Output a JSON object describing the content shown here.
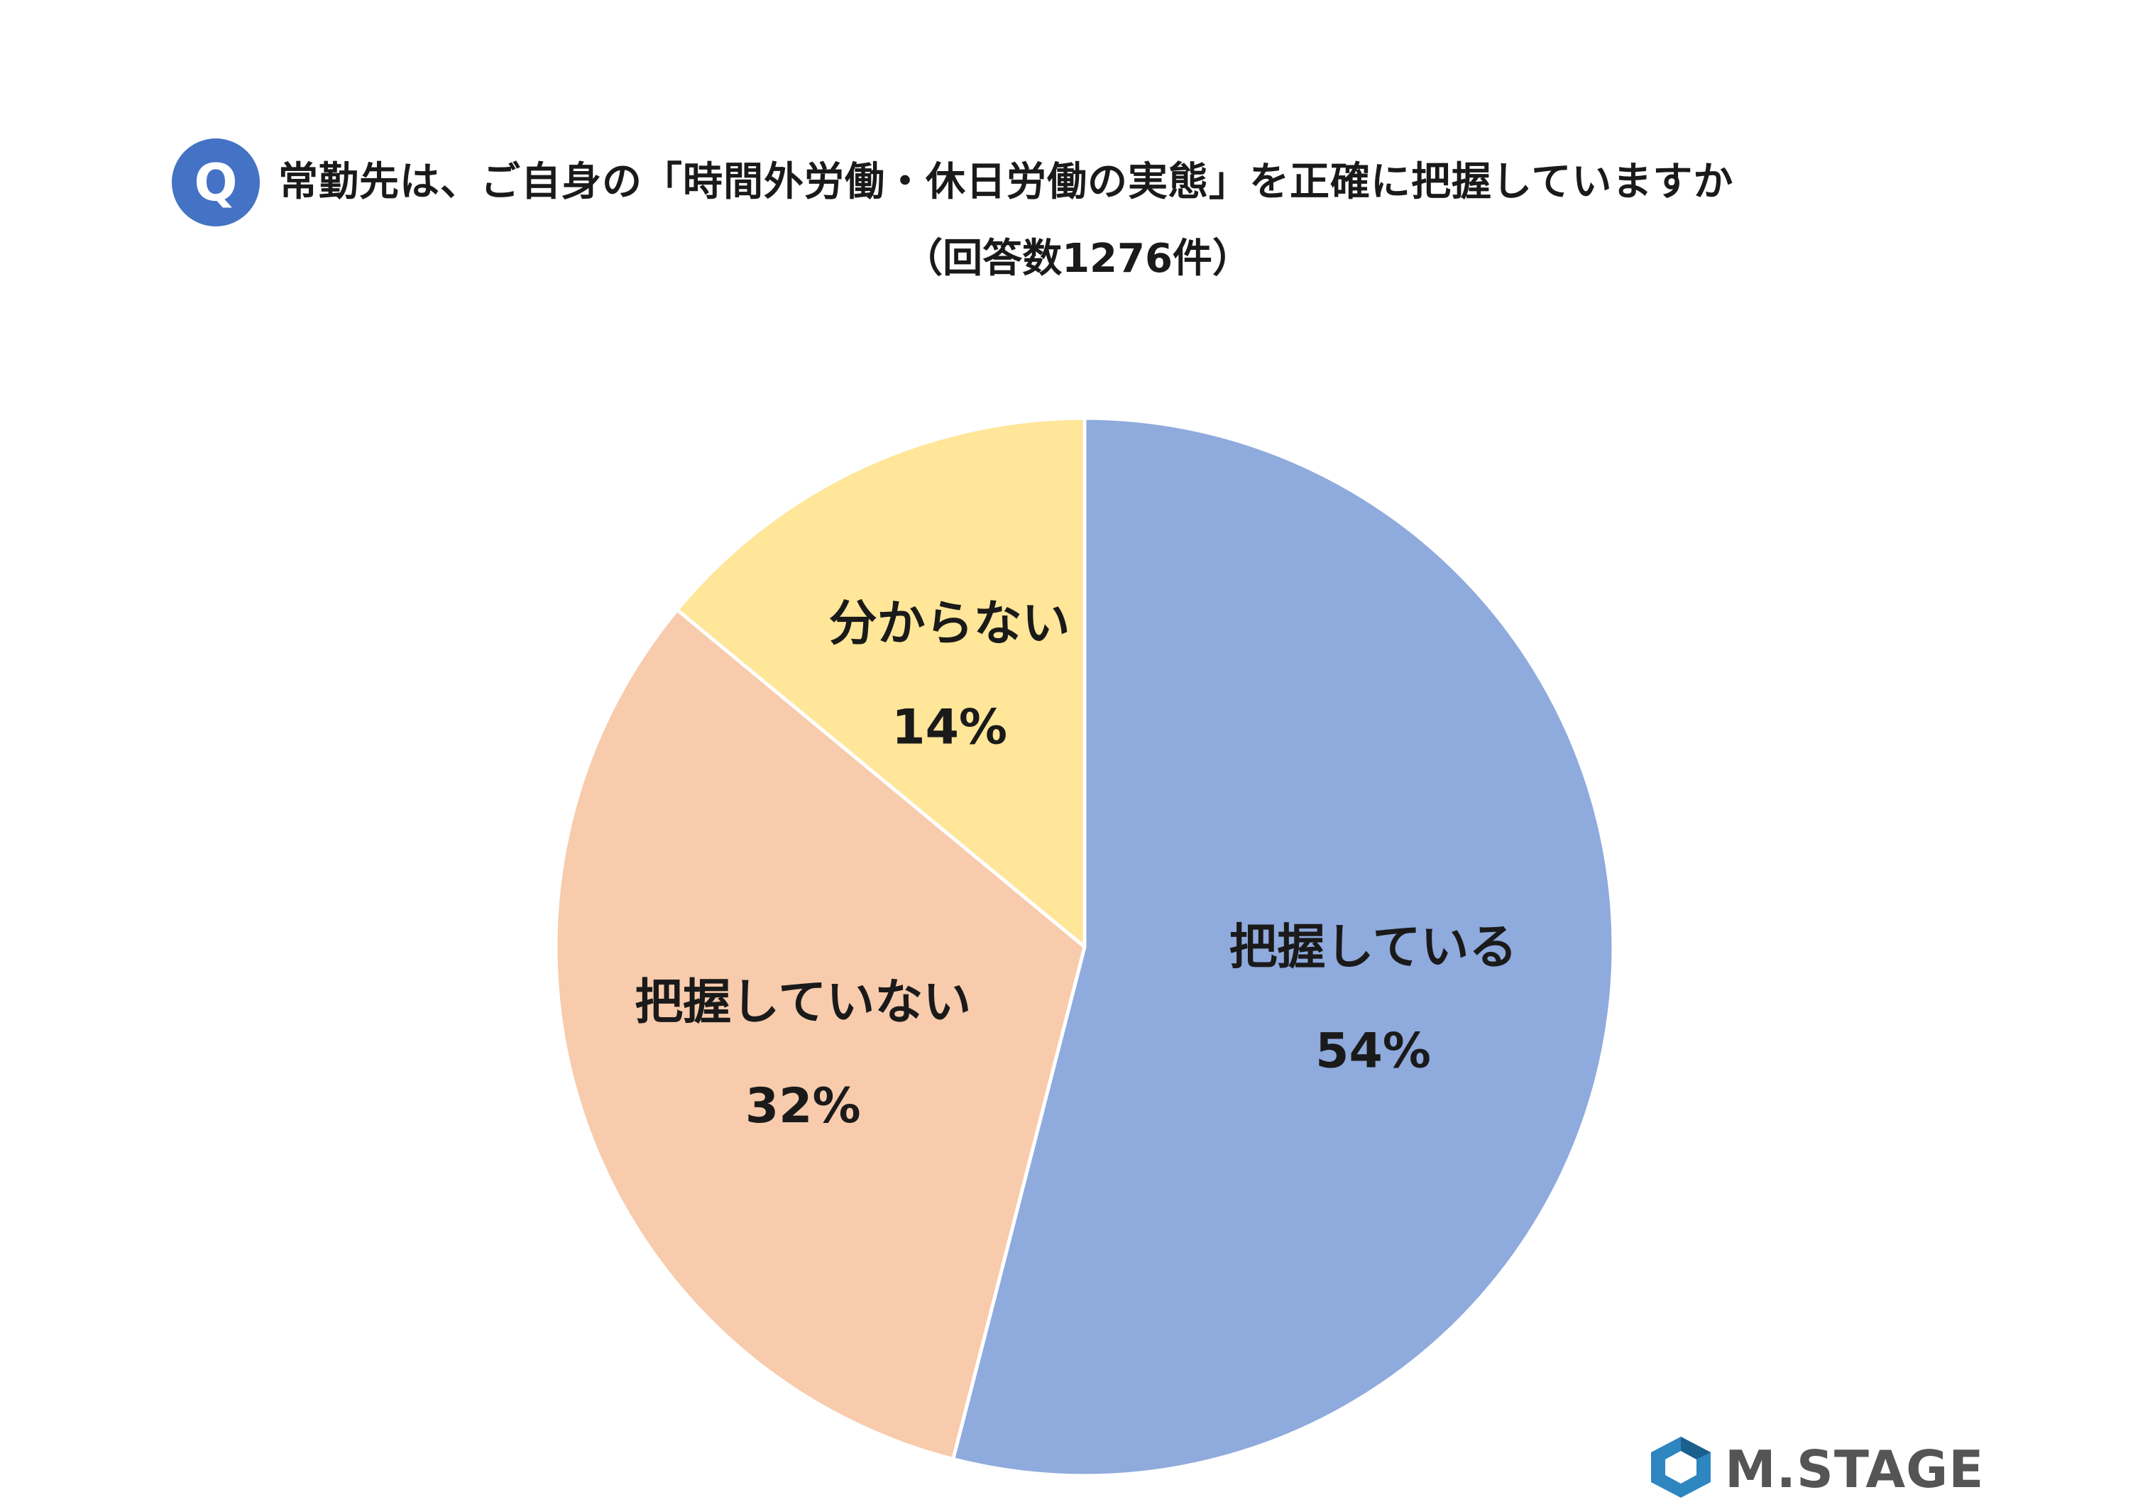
{
  "header": {
    "badge": "Q",
    "title": "常勤先は、ご自身の「時間外労働・休日労働の実態」を正確に把握していますか",
    "subtitle": "（回答数1276件）"
  },
  "chart_data": {
    "type": "pie",
    "title": "常勤先は、ご自身の「時間外労働・休日労働の実態」を正確に把握していますか",
    "subtitle": "（回答数1276件）",
    "slices": [
      {
        "label": "把握している",
        "value": 54,
        "value_label": "54%",
        "color": "#8faadc"
      },
      {
        "label": "把握していない",
        "value": 32,
        "value_label": "32%",
        "color": "#f7cbac"
      },
      {
        "label": "分からない",
        "value": 14,
        "value_label": "14%",
        "color": "#ffe699"
      }
    ],
    "start_angle": "12 o'clock",
    "direction": "clockwise",
    "legend": "none"
  },
  "logo": {
    "text": "M.STAGE",
    "colors": {
      "mark": "#2e86c1",
      "text": "#555555"
    }
  }
}
